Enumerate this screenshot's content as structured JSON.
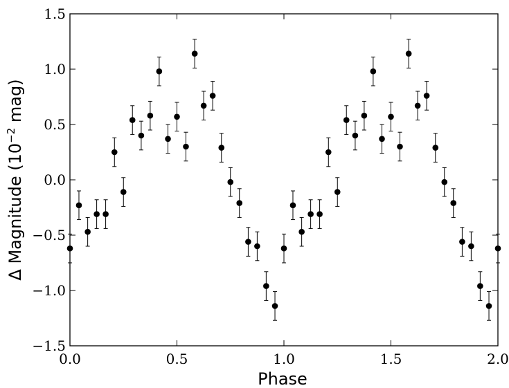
{
  "chart_data": {
    "type": "scatter",
    "title": "",
    "xlabel": "Phase",
    "ylabel_parts": [
      "Δ Magnitude (10",
      "−2",
      " mag)"
    ],
    "xlim": [
      0.0,
      2.0
    ],
    "ylim": [
      -1.5,
      1.5
    ],
    "x_ticks": [
      0.0,
      0.5,
      1.0,
      1.5,
      2.0
    ],
    "x_tick_labels": [
      "0.0",
      "0.5",
      "1.0",
      "1.5",
      "2.0"
    ],
    "y_ticks": [
      -1.5,
      -1.0,
      -0.5,
      0.0,
      0.5,
      1.0,
      1.5
    ],
    "y_tick_labels": [
      "−1.5",
      "−1.0",
      "−0.5",
      "0.0",
      "0.5",
      "1.0",
      "1.5"
    ],
    "grid": false,
    "marker_color": "#000000",
    "series": [
      {
        "x": [
          0.0,
          0.042,
          0.083,
          0.125,
          0.167,
          0.208,
          0.25,
          0.292,
          0.333,
          0.375,
          0.417,
          0.458,
          0.5,
          0.542,
          0.583,
          0.625,
          0.667,
          0.708,
          0.75,
          0.792,
          0.833,
          0.875,
          0.917,
          0.958,
          1.0,
          1.042,
          1.083,
          1.125,
          1.167,
          1.208,
          1.25,
          1.292,
          1.333,
          1.375,
          1.417,
          1.458,
          1.5,
          1.542,
          1.583,
          1.625,
          1.667,
          1.708,
          1.75,
          1.792,
          1.833,
          1.875,
          1.917,
          1.958,
          2.0
        ],
        "y": [
          -0.62,
          -0.23,
          -0.47,
          -0.31,
          -0.31,
          0.25,
          -0.11,
          0.54,
          0.4,
          0.58,
          0.98,
          0.37,
          0.57,
          0.3,
          1.14,
          0.67,
          0.76,
          0.29,
          -0.02,
          -0.21,
          -0.56,
          -0.6,
          -0.96,
          -1.14,
          -0.62,
          -0.23,
          -0.47,
          -0.31,
          -0.31,
          0.25,
          -0.11,
          0.54,
          0.4,
          0.58,
          0.98,
          0.37,
          0.57,
          0.3,
          1.14,
          0.67,
          0.76,
          0.29,
          -0.02,
          -0.21,
          -0.56,
          -0.6,
          -0.96,
          -1.14,
          -0.62
        ],
        "yerr": 0.13
      }
    ]
  }
}
